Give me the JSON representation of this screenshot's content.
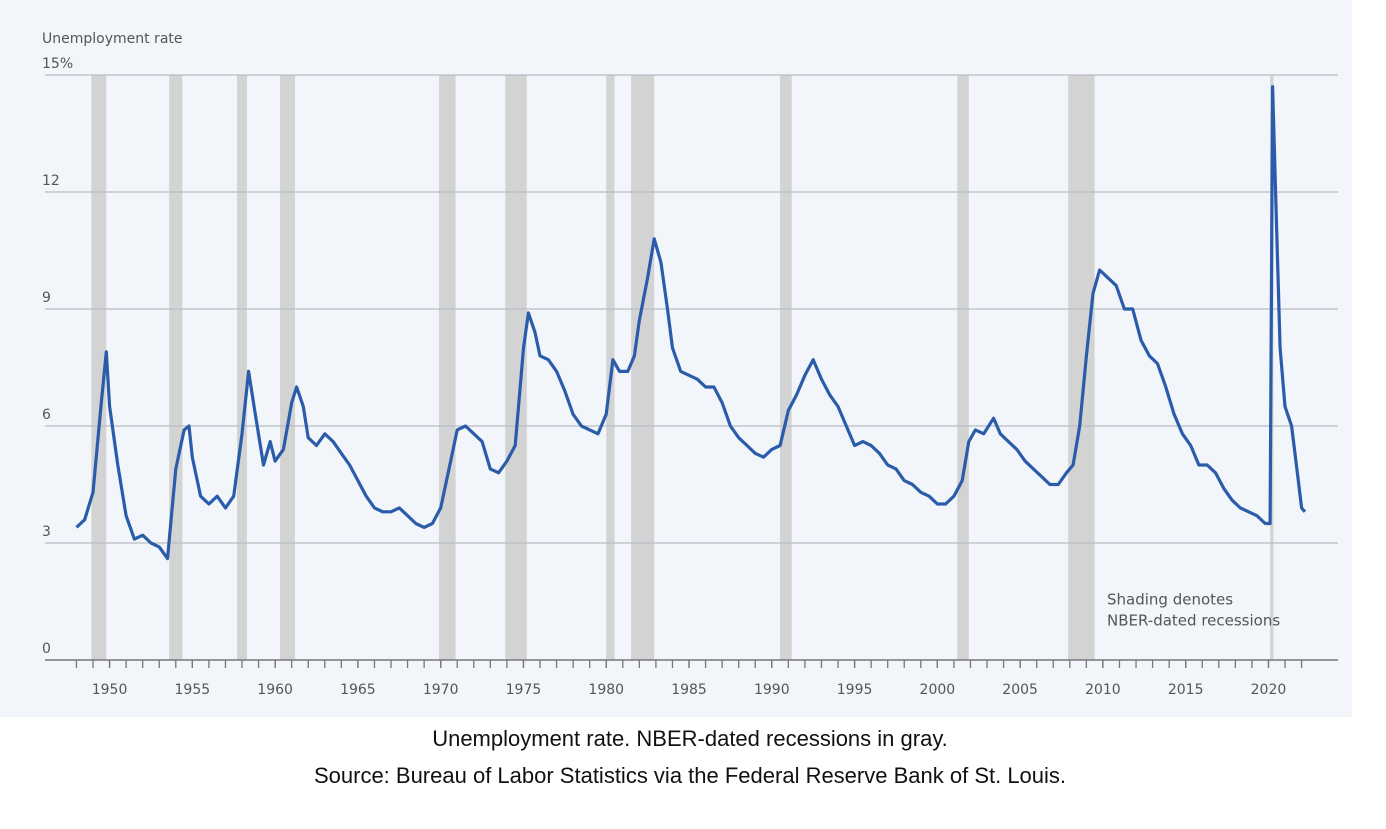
{
  "chart_data": {
    "type": "line",
    "title": "Unemployment rate",
    "annotation": [
      "Shading denotes",
      "NBER-dated recessions"
    ],
    "caption": [
      "Unemployment rate. NBER-dated recessions in gray.",
      "Source: Bureau of Labor Statistics via the Federal Reserve Bank of St. Louis."
    ],
    "xlim": [
      1946.1,
      2024.2
    ],
    "ylim": [
      0,
      15
    ],
    "yticks": [
      0,
      3,
      6,
      9,
      12,
      {
        "value": 15,
        "label": "15%"
      }
    ],
    "xticks": [
      1950,
      1955,
      1960,
      1965,
      1970,
      1975,
      1980,
      1985,
      1990,
      1995,
      2000,
      2005,
      2010,
      2015,
      2020
    ],
    "xminorticks": [
      1948,
      1949,
      1950,
      1951,
      1952,
      1953,
      1954,
      1955,
      1956,
      1957,
      1958,
      1959,
      1960,
      1961,
      1962,
      1963,
      1964,
      1965,
      1966,
      1967,
      1968,
      1969,
      1970,
      1971,
      1972,
      1973,
      1974,
      1975,
      1976,
      1977,
      1978,
      1979,
      1980,
      1981,
      1982,
      1983,
      1984,
      1985,
      1986,
      1987,
      1988,
      1989,
      1990,
      1991,
      1992,
      1993,
      1994,
      1995,
      1996,
      1997,
      1998,
      1999,
      2000,
      2001,
      2002,
      2003,
      2004,
      2005,
      2006,
      2007,
      2008,
      2009,
      2010,
      2011,
      2012,
      2013,
      2014,
      2015,
      2016,
      2017,
      2018,
      2019,
      2020,
      2021,
      2022
    ],
    "grid": true,
    "recession_color": "#d3d3d3",
    "recessions": [
      [
        1948.9,
        1949.8
      ],
      [
        1953.6,
        1954.4
      ],
      [
        1957.7,
        1958.3
      ],
      [
        1960.3,
        1961.2
      ],
      [
        1969.9,
        1970.9
      ],
      [
        1973.9,
        1975.2
      ],
      [
        1980.0,
        1980.5
      ],
      [
        1981.5,
        1982.9
      ],
      [
        1990.5,
        1991.2
      ],
      [
        2001.2,
        2001.9
      ],
      [
        2007.9,
        2009.5
      ],
      [
        2020.1,
        2020.3
      ]
    ],
    "series": [
      {
        "name": "Unemployment rate",
        "color": "#2a5caa",
        "x": [
          1948.0,
          1948.5,
          1949.0,
          1949.5,
          1949.8,
          1950.0,
          1950.5,
          1951.0,
          1951.5,
          1952.0,
          1952.5,
          1953.0,
          1953.5,
          1954.0,
          1954.5,
          1954.8,
          1955.0,
          1955.5,
          1956.0,
          1956.5,
          1957.0,
          1957.5,
          1958.0,
          1958.4,
          1958.8,
          1959.3,
          1959.7,
          1960.0,
          1960.5,
          1961.0,
          1961.3,
          1961.7,
          1962.0,
          1962.5,
          1963.0,
          1963.5,
          1964.0,
          1964.5,
          1965.0,
          1965.5,
          1966.0,
          1966.5,
          1967.0,
          1967.5,
          1968.0,
          1968.5,
          1969.0,
          1969.5,
          1970.0,
          1970.5,
          1971.0,
          1971.5,
          1972.0,
          1972.5,
          1973.0,
          1973.5,
          1974.0,
          1974.5,
          1975.0,
          1975.3,
          1975.7,
          1976.0,
          1976.5,
          1977.0,
          1977.5,
          1978.0,
          1978.5,
          1979.0,
          1979.5,
          1980.0,
          1980.4,
          1980.8,
          1981.3,
          1981.7,
          1982.0,
          1982.5,
          1982.9,
          1983.3,
          1983.7,
          1984.0,
          1984.5,
          1985.0,
          1985.5,
          1986.0,
          1986.5,
          1987.0,
          1987.5,
          1988.0,
          1988.5,
          1989.0,
          1989.5,
          1990.0,
          1990.5,
          1991.0,
          1991.5,
          1992.0,
          1992.5,
          1993.0,
          1993.5,
          1994.0,
          1994.5,
          1995.0,
          1995.5,
          1996.0,
          1996.5,
          1997.0,
          1997.5,
          1998.0,
          1998.5,
          1999.0,
          1999.5,
          2000.0,
          2000.5,
          2001.0,
          2001.5,
          2001.9,
          2002.3,
          2002.8,
          2003.4,
          2003.8,
          2004.3,
          2004.8,
          2005.3,
          2005.8,
          2006.3,
          2006.8,
          2007.3,
          2007.8,
          2008.2,
          2008.6,
          2009.0,
          2009.4,
          2009.8,
          2010.3,
          2010.8,
          2011.3,
          2011.8,
          2012.3,
          2012.8,
          2013.3,
          2013.8,
          2014.3,
          2014.8,
          2015.3,
          2015.8,
          2016.3,
          2016.8,
          2017.3,
          2017.8,
          2018.3,
          2018.8,
          2019.3,
          2019.8,
          2020.1,
          2020.25,
          2020.5,
          2020.7,
          2021.0,
          2021.4,
          2021.8,
          2022.0,
          2022.2
        ],
        "values": [
          3.4,
          3.6,
          4.3,
          6.6,
          7.9,
          6.5,
          5.0,
          3.7,
          3.1,
          3.2,
          3.0,
          2.9,
          2.6,
          4.9,
          5.9,
          6.0,
          5.2,
          4.2,
          4.0,
          4.2,
          3.9,
          4.2,
          5.8,
          7.4,
          6.3,
          5.0,
          5.6,
          5.1,
          5.4,
          6.6,
          7.0,
          6.5,
          5.7,
          5.5,
          5.8,
          5.6,
          5.3,
          5.0,
          4.6,
          4.2,
          3.9,
          3.8,
          3.8,
          3.9,
          3.7,
          3.5,
          3.4,
          3.5,
          3.9,
          4.9,
          5.9,
          6.0,
          5.8,
          5.6,
          4.9,
          4.8,
          5.1,
          5.5,
          8.0,
          8.9,
          8.4,
          7.8,
          7.7,
          7.4,
          6.9,
          6.3,
          6.0,
          5.9,
          5.8,
          6.3,
          7.7,
          7.4,
          7.4,
          7.8,
          8.7,
          9.8,
          10.8,
          10.2,
          9.0,
          8.0,
          7.4,
          7.3,
          7.2,
          7.0,
          7.0,
          6.6,
          6.0,
          5.7,
          5.5,
          5.3,
          5.2,
          5.4,
          5.5,
          6.4,
          6.8,
          7.3,
          7.7,
          7.2,
          6.8,
          6.5,
          6.0,
          5.5,
          5.6,
          5.5,
          5.3,
          5.0,
          4.9,
          4.6,
          4.5,
          4.3,
          4.2,
          4.0,
          4.0,
          4.2,
          4.6,
          5.6,
          5.9,
          5.8,
          6.2,
          5.8,
          5.6,
          5.4,
          5.1,
          4.9,
          4.7,
          4.5,
          4.5,
          4.8,
          5.0,
          6.0,
          7.8,
          9.4,
          10.0,
          9.8,
          9.6,
          9.0,
          9.0,
          8.2,
          7.8,
          7.6,
          7.0,
          6.3,
          5.8,
          5.5,
          5.0,
          5.0,
          4.8,
          4.4,
          4.1,
          3.9,
          3.8,
          3.7,
          3.5,
          3.5,
          14.7,
          11.0,
          8.0,
          6.5,
          6.0,
          4.6,
          3.9,
          3.8
        ]
      }
    ]
  }
}
